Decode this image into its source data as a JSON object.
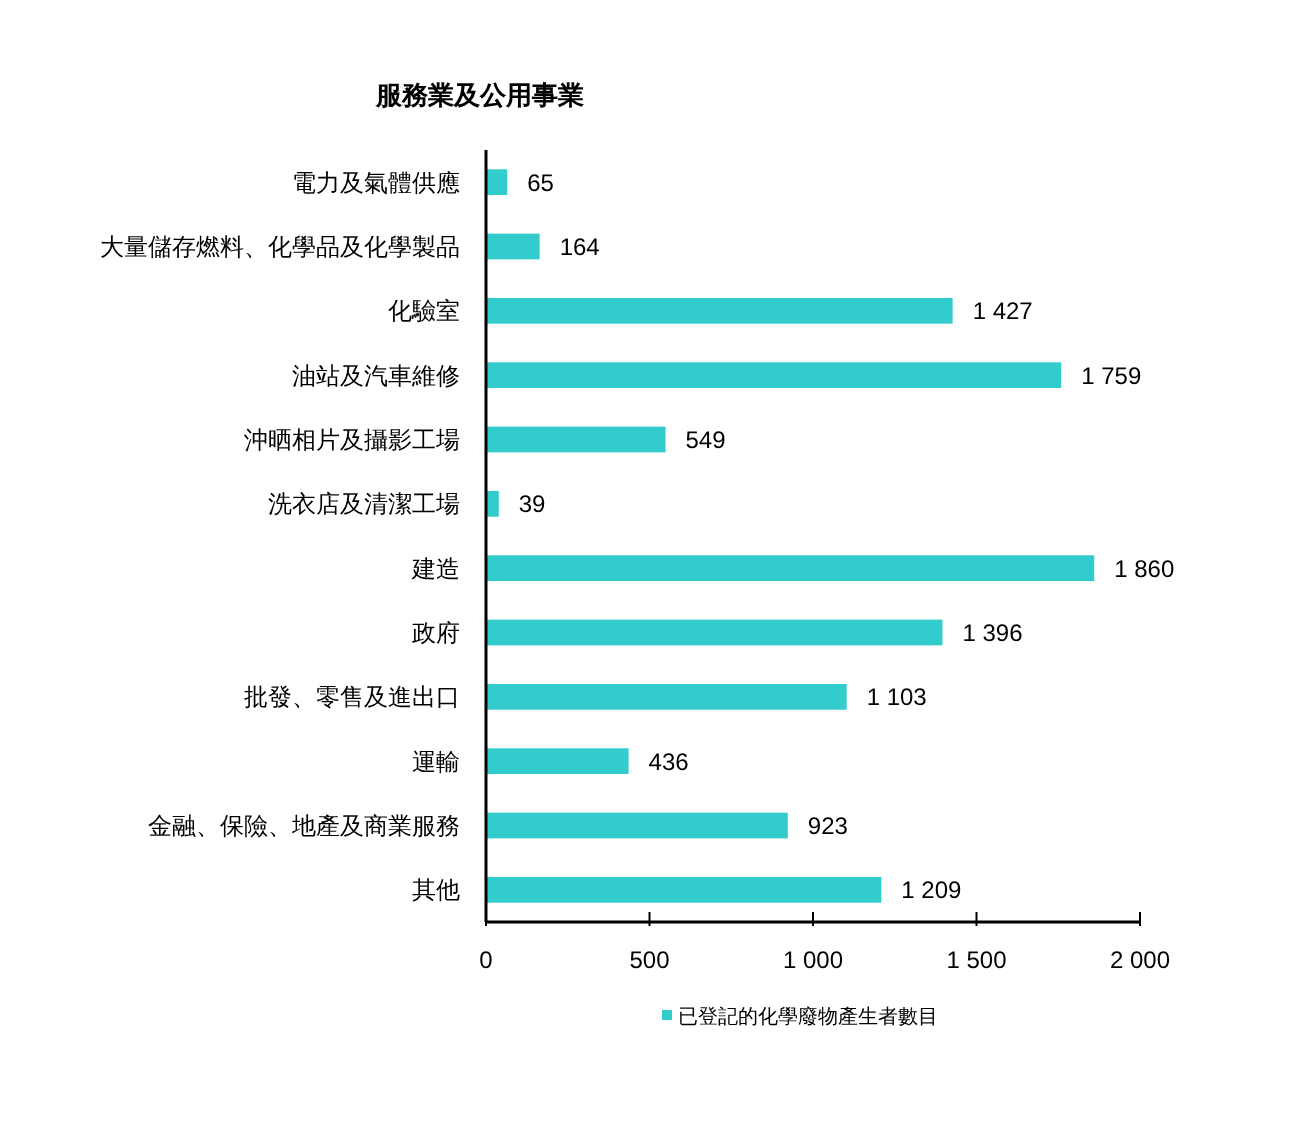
{
  "chart_data": {
    "type": "bar",
    "orientation": "horizontal",
    "title": "服務業及公用事業",
    "categories": [
      "電力及氣體供應",
      "大量儲存燃料、化學品及化學製品",
      "化驗室",
      "油站及汽車維修",
      "沖晒相片及攝影工場",
      "洗衣店及清潔工場",
      "建造",
      "政府",
      "批發、零售及進出口",
      "運輸",
      "金融、保險、地產及商業服務",
      "其他"
    ],
    "series": [
      {
        "name": "已登記的化學廢物產生者數目",
        "color": "#33cccc",
        "values": [
          65,
          164,
          1427,
          1759,
          549,
          39,
          1860,
          1396,
          1103,
          436,
          923,
          1209
        ],
        "value_labels": [
          "65",
          "164",
          "1 427",
          "1 759",
          "549",
          "39",
          "1 860",
          "1 396",
          "1 103",
          "436",
          "923",
          "1 209"
        ]
      }
    ],
    "xlim": [
      0,
      2000
    ],
    "xticks": [
      0,
      500,
      {
        "value": 1000,
        "label": "1 000"
      },
      {
        "value": 1500,
        "label": "1 500"
      },
      {
        "value": 2000,
        "label": "2 000"
      }
    ],
    "legend": "bottom",
    "grid": false
  }
}
